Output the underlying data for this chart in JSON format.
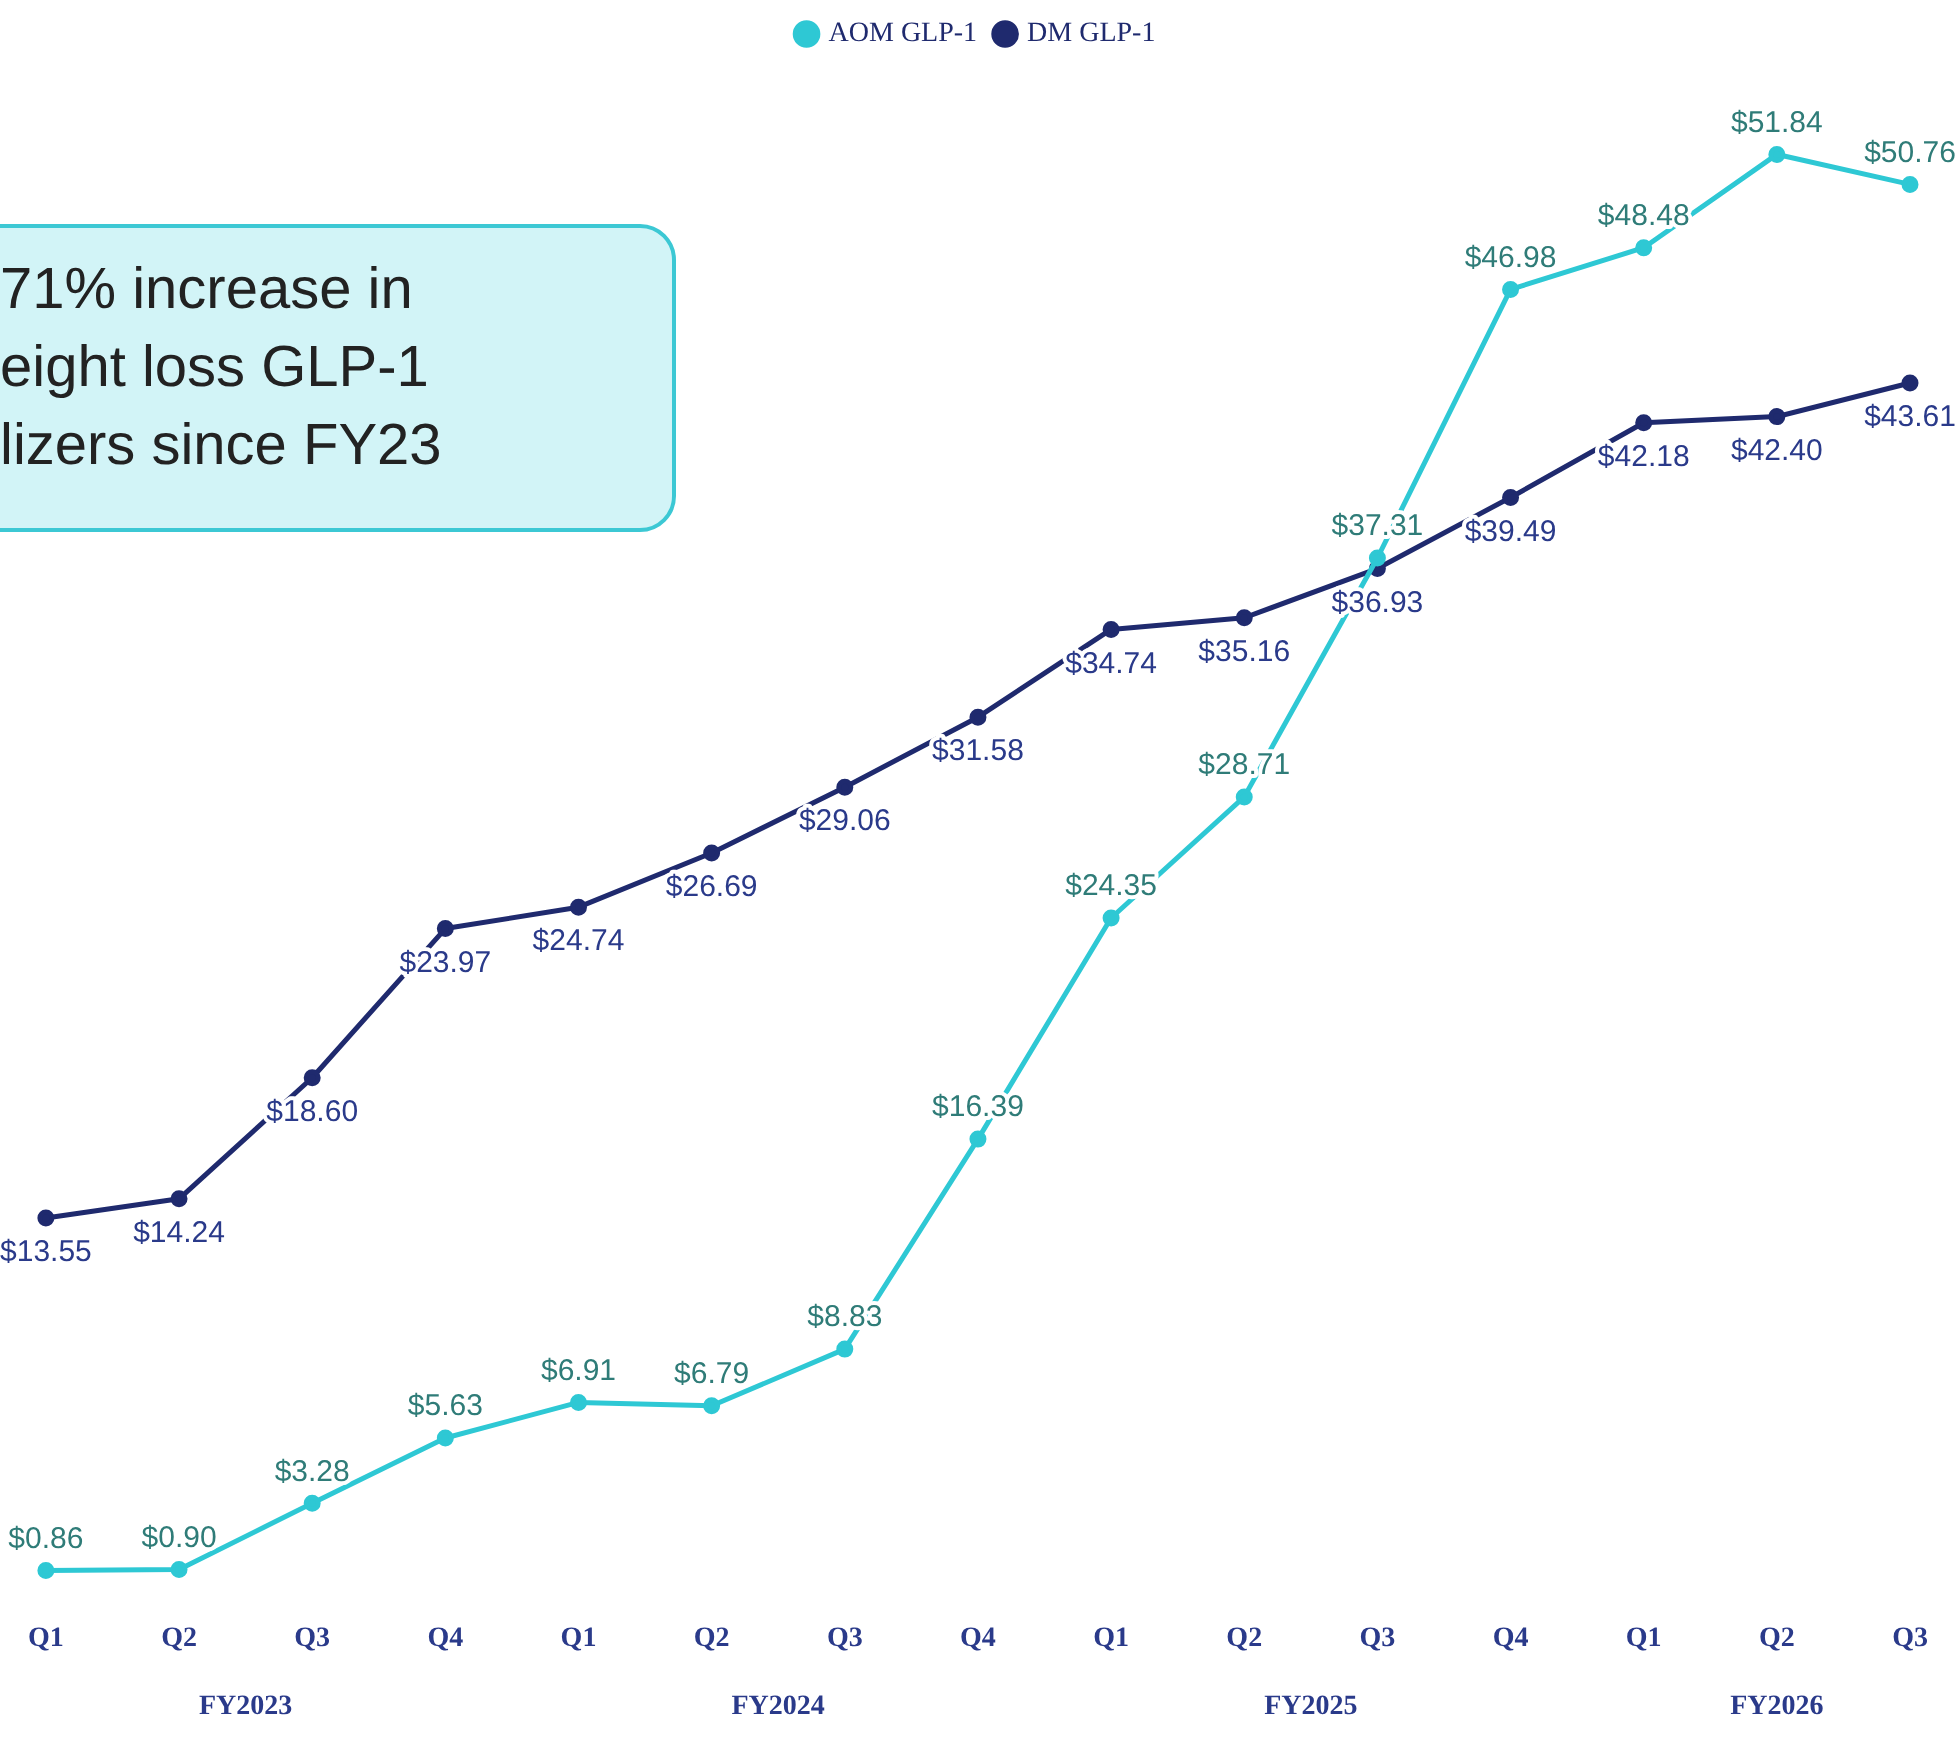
{
  "chart_data": {
    "type": "line",
    "categories": [
      "Q1",
      "Q2",
      "Q3",
      "Q4",
      "Q1",
      "Q2",
      "Q3",
      "Q4",
      "Q1",
      "Q2",
      "Q3",
      "Q4",
      "Q1",
      "Q2",
      "Q3"
    ],
    "series": [
      {
        "name": "AOM GLP-1",
        "color": "#2ec8d4",
        "values": [
          0.86,
          0.9,
          3.28,
          5.63,
          6.91,
          6.79,
          8.83,
          16.39,
          24.35,
          28.71,
          37.31,
          46.98,
          48.48,
          51.84,
          50.76
        ],
        "value_labels": [
          "$0.86",
          "$0.90",
          "$3.28",
          "$5.63",
          "$6.91",
          "$6.79",
          "$8.83",
          "$16.39",
          "$24.35",
          "$28.71",
          "$37.31",
          "$46.98",
          "$48.48",
          "$51.84",
          "$50.76"
        ]
      },
      {
        "name": "DM GLP-1",
        "color": "#1f2a6e",
        "values": [
          13.55,
          14.24,
          18.6,
          23.97,
          24.74,
          26.69,
          29.06,
          31.58,
          34.74,
          35.16,
          36.93,
          39.49,
          42.18,
          42.4,
          43.61
        ],
        "value_labels": [
          "$13.55",
          "$14.24",
          "$18.60",
          "$23.97",
          "$24.74",
          "$26.69",
          "$29.06",
          "$31.58",
          "$34.74",
          "$35.16",
          "$36.93",
          "$39.49",
          "$42.18",
          "$42.40",
          "$43.61"
        ]
      }
    ],
    "annotations": [
      "71% increase in eight loss GLP-1 lizers since FY23",
      "FY2023",
      "FY2024",
      "FY2025",
      "FY2026"
    ],
    "legend": "top",
    "marker": "circle",
    "line_style": "solid",
    "grid": false
  }
}
